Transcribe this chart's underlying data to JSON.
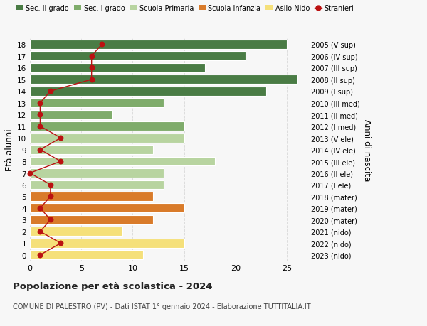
{
  "ages": [
    18,
    17,
    16,
    15,
    14,
    13,
    12,
    11,
    10,
    9,
    8,
    7,
    6,
    5,
    4,
    3,
    2,
    1,
    0
  ],
  "right_labels": [
    "2005 (V sup)",
    "2006 (IV sup)",
    "2007 (III sup)",
    "2008 (II sup)",
    "2009 (I sup)",
    "2010 (III med)",
    "2011 (II med)",
    "2012 (I med)",
    "2013 (V ele)",
    "2014 (IV ele)",
    "2015 (III ele)",
    "2016 (II ele)",
    "2017 (I ele)",
    "2018 (mater)",
    "2019 (mater)",
    "2020 (mater)",
    "2021 (nido)",
    "2022 (nido)",
    "2023 (nido)"
  ],
  "bar_values": [
    25,
    21,
    17,
    26,
    23,
    13,
    8,
    15,
    15,
    12,
    18,
    13,
    13,
    12,
    15,
    12,
    9,
    15,
    11
  ],
  "bar_colors": [
    "#4a7c45",
    "#4a7c45",
    "#4a7c45",
    "#4a7c45",
    "#4a7c45",
    "#7fac6b",
    "#7fac6b",
    "#7fac6b",
    "#b8d4a0",
    "#b8d4a0",
    "#b8d4a0",
    "#b8d4a0",
    "#b8d4a0",
    "#d97b2a",
    "#d97b2a",
    "#d97b2a",
    "#f5e07a",
    "#f5e07a",
    "#f5e07a"
  ],
  "stranieri_values": [
    7,
    6,
    6,
    6,
    2,
    1,
    1,
    1,
    3,
    1,
    3,
    0,
    2,
    2,
    1,
    2,
    1,
    3,
    1
  ],
  "xlim": [
    0,
    27
  ],
  "xticks": [
    0,
    5,
    10,
    15,
    20,
    25
  ],
  "ylabel": "Età alunni",
  "right_ylabel": "Anni di nascita",
  "title": "Popolazione per età scolastica - 2024",
  "subtitle": "COMUNE DI PALESTRO (PV) - Dati ISTAT 1° gennaio 2024 - Elaborazione TUTTITALIA.IT",
  "legend_items": [
    {
      "label": "Sec. II grado",
      "color": "#4a7c45"
    },
    {
      "label": "Sec. I grado",
      "color": "#7fac6b"
    },
    {
      "label": "Scuola Primaria",
      "color": "#b8d4a0"
    },
    {
      "label": "Scuola Infanzia",
      "color": "#d97b2a"
    },
    {
      "label": "Asilo Nido",
      "color": "#f5e07a"
    },
    {
      "label": "Stranieri",
      "color": "#bb1111"
    }
  ],
  "bg_color": "#f7f7f7",
  "grid_color": "#dddddd",
  "bar_height": 0.78
}
